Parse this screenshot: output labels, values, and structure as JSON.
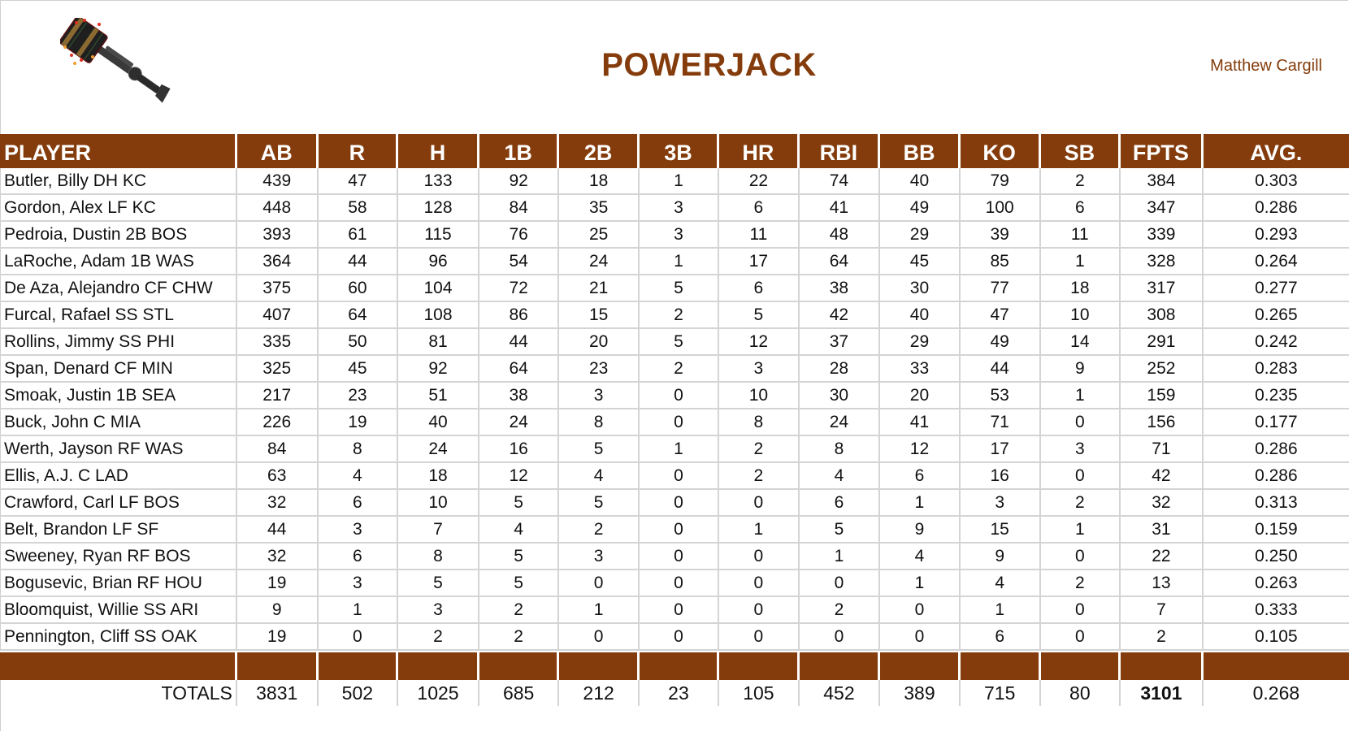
{
  "header": {
    "title": "POWERJACK",
    "owner": "Matthew Cargill",
    "logo_icon": "powerjack-hammer-icon"
  },
  "colors": {
    "brand_brown": "#843C0C",
    "grid": "#d4d4d4",
    "text": "#111111"
  },
  "columns": [
    "PLAYER",
    "AB",
    "R",
    "H",
    "1B",
    "2B",
    "3B",
    "HR",
    "RBI",
    "BB",
    "KO",
    "SB",
    "FPTS",
    "AVG."
  ],
  "rows": [
    [
      "Butler, Billy DH KC",
      "439",
      "47",
      "133",
      "92",
      "18",
      "1",
      "22",
      "74",
      "40",
      "79",
      "2",
      "384",
      "0.303"
    ],
    [
      "Gordon, Alex LF KC",
      "448",
      "58",
      "128",
      "84",
      "35",
      "3",
      "6",
      "41",
      "49",
      "100",
      "6",
      "347",
      "0.286"
    ],
    [
      "Pedroia, Dustin 2B BOS",
      "393",
      "61",
      "115",
      "76",
      "25",
      "3",
      "11",
      "48",
      "29",
      "39",
      "11",
      "339",
      "0.293"
    ],
    [
      "LaRoche, Adam 1B WAS",
      "364",
      "44",
      "96",
      "54",
      "24",
      "1",
      "17",
      "64",
      "45",
      "85",
      "1",
      "328",
      "0.264"
    ],
    [
      "De Aza, Alejandro CF CHW",
      "375",
      "60",
      "104",
      "72",
      "21",
      "5",
      "6",
      "38",
      "30",
      "77",
      "18",
      "317",
      "0.277"
    ],
    [
      "Furcal, Rafael SS STL",
      "407",
      "64",
      "108",
      "86",
      "15",
      "2",
      "5",
      "42",
      "40",
      "47",
      "10",
      "308",
      "0.265"
    ],
    [
      "Rollins, Jimmy SS PHI",
      "335",
      "50",
      "81",
      "44",
      "20",
      "5",
      "12",
      "37",
      "29",
      "49",
      "14",
      "291",
      "0.242"
    ],
    [
      "Span, Denard CF MIN",
      "325",
      "45",
      "92",
      "64",
      "23",
      "2",
      "3",
      "28",
      "33",
      "44",
      "9",
      "252",
      "0.283"
    ],
    [
      "Smoak, Justin 1B SEA",
      "217",
      "23",
      "51",
      "38",
      "3",
      "0",
      "10",
      "30",
      "20",
      "53",
      "1",
      "159",
      "0.235"
    ],
    [
      "Buck, John C MIA",
      "226",
      "19",
      "40",
      "24",
      "8",
      "0",
      "8",
      "24",
      "41",
      "71",
      "0",
      "156",
      "0.177"
    ],
    [
      "Werth, Jayson RF WAS",
      "84",
      "8",
      "24",
      "16",
      "5",
      "1",
      "2",
      "8",
      "12",
      "17",
      "3",
      "71",
      "0.286"
    ],
    [
      "Ellis, A.J. C LAD",
      "63",
      "4",
      "18",
      "12",
      "4",
      "0",
      "2",
      "4",
      "6",
      "16",
      "0",
      "42",
      "0.286"
    ],
    [
      "Crawford, Carl LF BOS",
      "32",
      "6",
      "10",
      "5",
      "5",
      "0",
      "0",
      "6",
      "1",
      "3",
      "2",
      "32",
      "0.313"
    ],
    [
      "Belt, Brandon LF SF",
      "44",
      "3",
      "7",
      "4",
      "2",
      "0",
      "1",
      "5",
      "9",
      "15",
      "1",
      "31",
      "0.159"
    ],
    [
      "Sweeney, Ryan RF BOS",
      "32",
      "6",
      "8",
      "5",
      "3",
      "0",
      "0",
      "1",
      "4",
      "9",
      "0",
      "22",
      "0.250"
    ],
    [
      "Bogusevic, Brian RF HOU",
      "19",
      "3",
      "5",
      "5",
      "0",
      "0",
      "0",
      "0",
      "1",
      "4",
      "2",
      "13",
      "0.263"
    ],
    [
      "Bloomquist, Willie SS ARI",
      "9",
      "1",
      "3",
      "2",
      "1",
      "0",
      "0",
      "2",
      "0",
      "1",
      "0",
      "7",
      "0.333"
    ],
    [
      "Pennington, Cliff SS OAK",
      "19",
      "0",
      "2",
      "2",
      "0",
      "0",
      "0",
      "0",
      "0",
      "6",
      "0",
      "2",
      "0.105"
    ]
  ],
  "totals": [
    "TOTALS",
    "3831",
    "502",
    "1025",
    "685",
    "212",
    "23",
    "105",
    "452",
    "389",
    "715",
    "80",
    "3101",
    "0.268"
  ]
}
